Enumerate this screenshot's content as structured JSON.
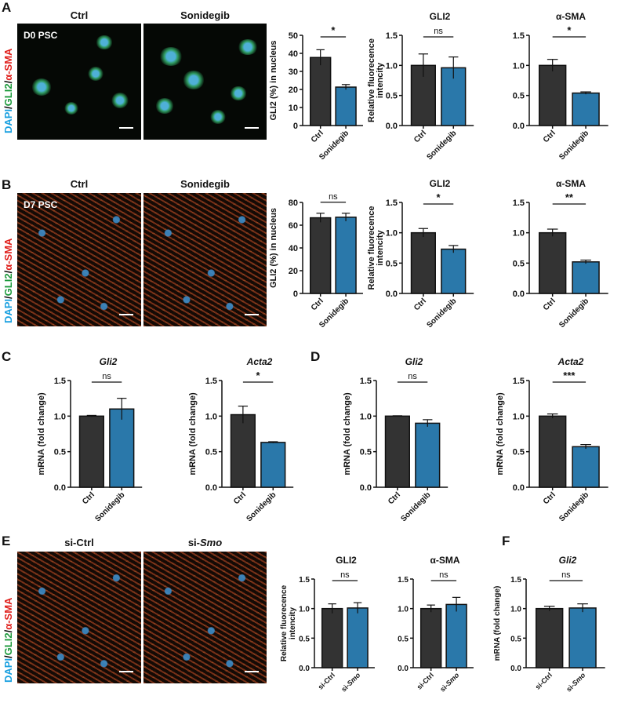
{
  "panels": {
    "A": "A",
    "B": "B",
    "C": "C",
    "D": "D",
    "E": "E",
    "F": "F"
  },
  "images": {
    "A": {
      "left": "Ctrl",
      "right": "Sonidegib",
      "inset": "D0 PSC"
    },
    "B": {
      "left": "Ctrl",
      "right": "Sonidegib",
      "inset": "D7 PSC"
    },
    "E": {
      "left": "si-Ctrl",
      "right_prefix": "si-",
      "right_italic": "Smo"
    }
  },
  "stain_label": {
    "dapi": "DAPI",
    "sep1": "/",
    "gli2": "GLI2",
    "sep2": "/",
    "asma": "α-SMA"
  },
  "colors": {
    "ctrl_bar": "#333333",
    "treated_bar": "#2a78aa",
    "dapi": "#1aa0e0",
    "gli2": "#1c9a3c",
    "asma": "#e0201c"
  },
  "chart_data": [
    {
      "id": "A1",
      "type": "bar",
      "title": "",
      "ylabel": [
        "GLI2 (%) in nucleus"
      ],
      "ylim": [
        0,
        50
      ],
      "yticks": [
        "0",
        "10",
        "20",
        "30",
        "40",
        "50"
      ],
      "categories": [
        "Ctrl",
        "Sonidegib"
      ],
      "values": [
        37.7,
        21.3
      ],
      "errors": [
        4.3,
        1.4
      ],
      "significance": "*"
    },
    {
      "id": "A2",
      "type": "bar",
      "title": "GLI2",
      "ylabel": [
        "Relative fluorecence",
        "intencity"
      ],
      "ylim": [
        0,
        1.5
      ],
      "yticks": [
        "0.0",
        "0.5",
        "1.0",
        "1.5"
      ],
      "categories": [
        "Ctrl",
        "Sonidegib"
      ],
      "values": [
        1.0,
        0.96
      ],
      "errors": [
        0.19,
        0.18
      ],
      "significance": "ns"
    },
    {
      "id": "A3",
      "type": "bar",
      "title": "α-SMA",
      "ylabel": [],
      "ylim": [
        0,
        1.5
      ],
      "yticks": [
        "0.0",
        "0.5",
        "1.0",
        "1.5"
      ],
      "categories": [
        "Ctrl",
        "Sonidegib"
      ],
      "values": [
        1.0,
        0.54
      ],
      "errors": [
        0.1,
        0.02
      ],
      "significance": "*"
    },
    {
      "id": "B1",
      "type": "bar",
      "title": "",
      "ylabel": [
        "GLI2 (%) in nucleus"
      ],
      "ylim": [
        0,
        80
      ],
      "yticks": [
        "0",
        "20",
        "40",
        "60",
        "80"
      ],
      "categories": [
        "Ctrl",
        "Sonidegib"
      ],
      "values": [
        66.5,
        67
      ],
      "errors": [
        4,
        3.5
      ],
      "significance": "ns"
    },
    {
      "id": "B2",
      "type": "bar",
      "title": "GLI2",
      "ylabel": [
        "Relative fluorecence",
        "intencity"
      ],
      "ylim": [
        0,
        1.5
      ],
      "yticks": [
        "0.0",
        "0.5",
        "1.0",
        "1.5"
      ],
      "categories": [
        "Ctrl",
        "Sonidegib"
      ],
      "values": [
        1.0,
        0.73
      ],
      "errors": [
        0.07,
        0.06
      ],
      "significance": "*"
    },
    {
      "id": "B3",
      "type": "bar",
      "title": "α-SMA",
      "ylabel": [],
      "ylim": [
        0,
        1.5
      ],
      "yticks": [
        "0.0",
        "0.5",
        "1.0",
        "1.5"
      ],
      "categories": [
        "Ctrl",
        "Sonidegib"
      ],
      "values": [
        1.0,
        0.52
      ],
      "errors": [
        0.06,
        0.03
      ],
      "significance": "**"
    },
    {
      "id": "C1",
      "type": "bar",
      "title": "Gli2",
      "title_italic": true,
      "ylabel": [
        "mRNA (fold change)"
      ],
      "ylim": [
        0,
        1.5
      ],
      "yticks": [
        "0.0",
        "0.5",
        "1.0",
        "1.5"
      ],
      "categories": [
        "Ctrl",
        "Sonidegib"
      ],
      "values": [
        1.0,
        1.1
      ],
      "errors": [
        0.01,
        0.15
      ],
      "significance": "ns"
    },
    {
      "id": "C2",
      "type": "bar",
      "title": "Acta2",
      "title_italic": true,
      "ylabel": [
        "mRNA (fold change)"
      ],
      "ylim": [
        0,
        1.5
      ],
      "yticks": [
        "0.0",
        "0.5",
        "1.0",
        "1.5"
      ],
      "categories": [
        "Ctrl",
        "Sonidegib"
      ],
      "values": [
        1.02,
        0.63
      ],
      "errors": [
        0.12,
        0.01
      ],
      "significance": "*"
    },
    {
      "id": "D1",
      "type": "bar",
      "title": "Gli2",
      "title_italic": true,
      "ylabel": [
        "mRNA (fold change)"
      ],
      "ylim": [
        0,
        1.5
      ],
      "yticks": [
        "0.0",
        "0.5",
        "1.0",
        "1.5"
      ],
      "categories": [
        "Ctrl",
        "Sonidegib"
      ],
      "values": [
        1.0,
        0.9
      ],
      "errors": [
        0.005,
        0.05
      ],
      "significance": "ns"
    },
    {
      "id": "D2",
      "type": "bar",
      "title": "Acta2",
      "title_italic": true,
      "ylabel": [
        "mRNA (fold change)"
      ],
      "ylim": [
        0,
        1.5
      ],
      "yticks": [
        "0.0",
        "0.5",
        "1.0",
        "1.5"
      ],
      "categories": [
        "Ctrl",
        "Sonidegib"
      ],
      "values": [
        1.0,
        0.57
      ],
      "errors": [
        0.03,
        0.03
      ],
      "significance": "***"
    },
    {
      "id": "E1",
      "type": "bar",
      "title": "GLI2",
      "ylabel": [
        "Relative fluorecence",
        "intencity"
      ],
      "ylim": [
        0,
        1.5
      ],
      "yticks": [
        "0.0",
        "0.5",
        "1.0",
        "1.5"
      ],
      "categories": [
        "si-Ctrl",
        "si-Smo"
      ],
      "values": [
        1.0,
        1.01
      ],
      "errors": [
        0.08,
        0.09
      ],
      "significance": "ns"
    },
    {
      "id": "E2",
      "type": "bar",
      "title": "α-SMA",
      "ylabel": [],
      "ylim": [
        0,
        1.5
      ],
      "yticks": [
        "0.0",
        "0.5",
        "1.0",
        "1.5"
      ],
      "categories": [
        "si-Ctrl",
        "si-Smo"
      ],
      "values": [
        1.0,
        1.07
      ],
      "errors": [
        0.06,
        0.12
      ],
      "significance": "ns"
    },
    {
      "id": "F1",
      "type": "bar",
      "title": "Gli2",
      "title_italic": true,
      "ylabel": [
        "mRNA (fold change)"
      ],
      "ylim": [
        0,
        1.5
      ],
      "yticks": [
        "0.0",
        "0.5",
        "1.0",
        "1.5"
      ],
      "categories": [
        "si-Ctrl",
        "si-Smo"
      ],
      "values": [
        1.0,
        1.01
      ],
      "errors": [
        0.04,
        0.07
      ],
      "significance": "ns"
    }
  ]
}
